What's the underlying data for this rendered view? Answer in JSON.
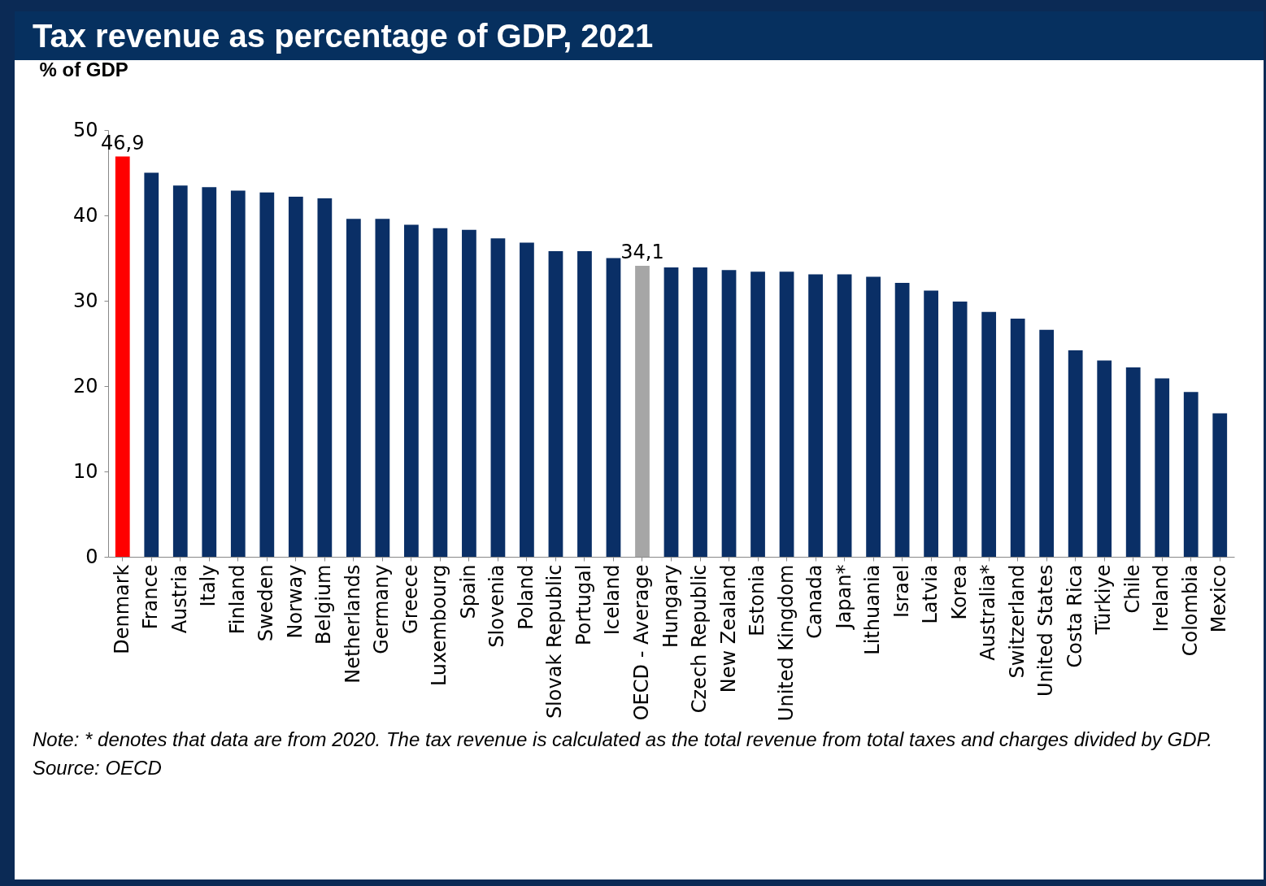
{
  "chart_data": {
    "type": "bar",
    "title": "Tax revenue as percentage of GDP, 2021",
    "ylabel": "% of GDP",
    "categories": [
      "Denmark",
      "France",
      "Austria",
      "Italy",
      "Finland",
      "Sweden",
      "Norway",
      "Belgium",
      "Netherlands",
      "Germany",
      "Greece",
      "Luxembourg",
      "Spain",
      "Slovenia",
      "Poland",
      "Slovak Republic",
      "Portugal",
      "Iceland",
      "OECD - Average",
      "Hungary",
      "Czech Republic",
      "New Zealand",
      "Estonia",
      "United Kingdom",
      "Canada",
      "Japan*",
      "Lithuania",
      "Israel",
      "Latvia",
      "Korea",
      "Australia*",
      "Switzerland",
      "United States",
      "Costa Rica",
      "Türkiye",
      "Chile",
      "Ireland",
      "Colombia",
      "Mexico"
    ],
    "values": [
      46.9,
      45.0,
      43.5,
      43.3,
      42.9,
      42.7,
      42.2,
      42.0,
      39.6,
      39.6,
      38.9,
      38.5,
      38.3,
      37.3,
      36.8,
      35.8,
      35.8,
      35.0,
      34.1,
      33.9,
      33.9,
      33.6,
      33.4,
      33.4,
      33.1,
      33.1,
      32.8,
      32.1,
      31.2,
      29.9,
      28.7,
      27.9,
      26.6,
      24.2,
      23.0,
      22.2,
      20.9,
      19.3,
      16.8
    ],
    "colors": [
      "#ff0000",
      "#0a2f66",
      "#0a2f66",
      "#0a2f66",
      "#0a2f66",
      "#0a2f66",
      "#0a2f66",
      "#0a2f66",
      "#0a2f66",
      "#0a2f66",
      "#0a2f66",
      "#0a2f66",
      "#0a2f66",
      "#0a2f66",
      "#0a2f66",
      "#0a2f66",
      "#0a2f66",
      "#0a2f66",
      "#a6a6a6",
      "#0a2f66",
      "#0a2f66",
      "#0a2f66",
      "#0a2f66",
      "#0a2f66",
      "#0a2f66",
      "#0a2f66",
      "#0a2f66",
      "#0a2f66",
      "#0a2f66",
      "#0a2f66",
      "#0a2f66",
      "#0a2f66",
      "#0a2f66",
      "#0a2f66",
      "#0a2f66",
      "#0a2f66",
      "#0a2f66",
      "#0a2f66",
      "#0a2f66"
    ],
    "value_labels": [
      "46,9",
      null,
      null,
      null,
      null,
      null,
      null,
      null,
      null,
      null,
      null,
      null,
      null,
      null,
      null,
      null,
      null,
      null,
      "34,1",
      null,
      null,
      null,
      null,
      null,
      null,
      null,
      null,
      null,
      null,
      null,
      null,
      null,
      null,
      null,
      null,
      null,
      null,
      null,
      null
    ],
    "ylim": [
      0,
      50
    ],
    "yticks": [
      0,
      10,
      20,
      30,
      40,
      50
    ],
    "grid": false,
    "annotations": [
      "Note: * denotes that data are from 2020. The tax revenue is calculated as the total revenue from total taxes and charges divided by GDP.",
      "Source: OECD"
    ]
  }
}
